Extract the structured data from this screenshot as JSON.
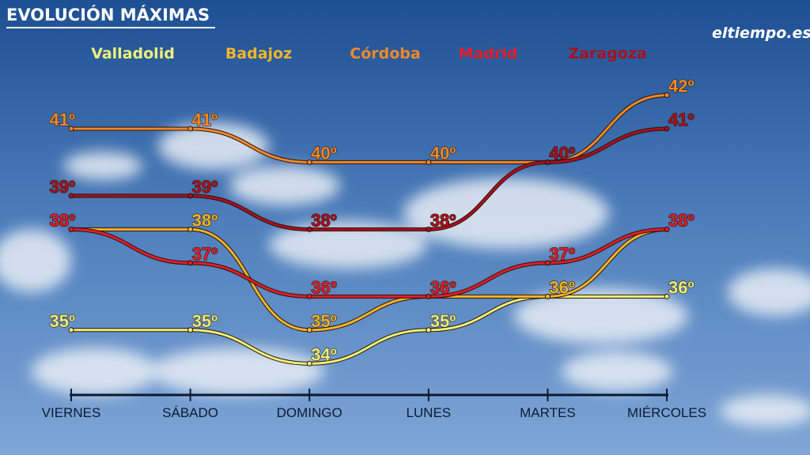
{
  "title": "EVOLUCIÓN MÁXIMAS",
  "logo": "eltiempo.es",
  "chart_data": {
    "type": "line",
    "categories": [
      "VIERNES",
      "SÁBADO",
      "DOMINGO",
      "LUNES",
      "MARTES",
      "MIÉRCOLES"
    ],
    "ylim": [
      32.5,
      43
    ],
    "series": [
      {
        "name": "Valladolid",
        "color": "#eef07a",
        "values": [
          35,
          35,
          34,
          35,
          36,
          36
        ],
        "value_labels": [
          "35º",
          "35º",
          "34º",
          "35º",
          "36º",
          "36º"
        ]
      },
      {
        "name": "Badajoz",
        "color": "#f2b62a",
        "values": [
          38,
          38,
          35,
          36,
          36,
          38
        ],
        "value_labels": [
          "38º",
          "38º",
          "35º",
          "36º",
          "36º",
          "38º"
        ]
      },
      {
        "name": "Córdoba",
        "color": "#f0892a",
        "values": [
          41,
          41,
          40,
          40,
          40,
          42
        ],
        "value_labels": [
          "41º",
          "41º",
          "40º",
          "40º",
          "40º",
          "42º"
        ]
      },
      {
        "name": "Madrid",
        "color": "#e01e2a",
        "values": [
          38,
          37,
          36,
          36,
          37,
          38
        ],
        "value_labels": [
          "38º",
          "37º",
          "36º",
          "36º",
          "37º",
          "38º"
        ]
      },
      {
        "name": "Zaragoza",
        "color": "#a8101e",
        "values": [
          39,
          39,
          38,
          38,
          40,
          41
        ],
        "value_labels": [
          "39º",
          "39º",
          "38º",
          "38º",
          "40º",
          "41º"
        ]
      }
    ]
  }
}
